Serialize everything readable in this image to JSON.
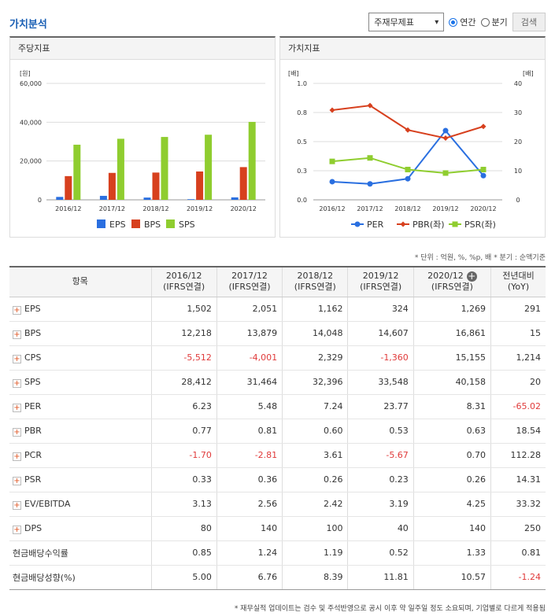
{
  "page_title": "가치분석",
  "controls": {
    "select_value": "주재무제표",
    "radio_annual": "연간",
    "radio_quarter": "분기",
    "search_button": "검색"
  },
  "panels": {
    "left_title": "주당지표",
    "right_title": "가치지표"
  },
  "colors": {
    "EPS": "#2a6fe0",
    "BPS": "#d7401e",
    "SPS": "#8fcd2f",
    "PER": "#2a6fe0",
    "PBR": "#d7401e",
    "PSR": "#8fcd2f"
  },
  "chart_data": [
    {
      "type": "bar",
      "categories": [
        "2016/12",
        "2017/12",
        "2018/12",
        "2019/12",
        "2020/12"
      ],
      "ylabel": "[원]",
      "ylim": [
        0,
        60000
      ],
      "yticks": [
        "0",
        "20,000",
        "40,000",
        "60,000"
      ],
      "series": [
        {
          "name": "EPS",
          "values": [
            1502,
            2051,
            1162,
            324,
            1269
          ]
        },
        {
          "name": "BPS",
          "values": [
            12218,
            13879,
            14048,
            14607,
            16861
          ]
        },
        {
          "name": "SPS",
          "values": [
            28412,
            31464,
            32396,
            33548,
            40158
          ]
        }
      ]
    },
    {
      "type": "line",
      "categories": [
        "2016/12",
        "2017/12",
        "2018/12",
        "2019/12",
        "2020/12"
      ],
      "ylabel_left": "[배]",
      "ylabel_right": "[배]",
      "ylim_left": [
        0,
        1.0
      ],
      "ylim_right": [
        0,
        40
      ],
      "yticks_left": [
        "0.0",
        "0.3",
        "0.5",
        "0.8",
        "1.0"
      ],
      "yticks_right": [
        "0",
        "10",
        "20",
        "30",
        "40"
      ],
      "series": [
        {
          "name": "PER",
          "legend": "PER",
          "axis": "right",
          "values": [
            6.23,
            5.48,
            7.24,
            23.77,
            8.31
          ]
        },
        {
          "name": "PBR",
          "legend": "PBR(좌)",
          "axis": "left",
          "values": [
            0.77,
            0.81,
            0.6,
            0.53,
            0.63
          ]
        },
        {
          "name": "PSR",
          "legend": "PSR(좌)",
          "axis": "left",
          "values": [
            0.33,
            0.36,
            0.26,
            0.23,
            0.26
          ]
        }
      ]
    }
  ],
  "note": "* 단위 : 억원, %, %p, 배    * 분기 : 순액기준",
  "table": {
    "header_item": "항목",
    "columns": [
      {
        "period": "2016/12",
        "basis": "(IFRS연결)"
      },
      {
        "period": "2017/12",
        "basis": "(IFRS연결)"
      },
      {
        "period": "2018/12",
        "basis": "(IFRS연결)"
      },
      {
        "period": "2019/12",
        "basis": "(IFRS연결)"
      },
      {
        "period": "2020/12",
        "basis": "(IFRS연결)"
      }
    ],
    "yoy_header": {
      "line1": "전년대비",
      "line2": "(YoY)"
    },
    "rows": [
      {
        "label": "EPS",
        "expand": true,
        "values": [
          "1,502",
          "2,051",
          "1,162",
          "324",
          "1,269",
          "291"
        ]
      },
      {
        "label": "BPS",
        "expand": true,
        "values": [
          "12,218",
          "13,879",
          "14,048",
          "14,607",
          "16,861",
          "15"
        ]
      },
      {
        "label": "CPS",
        "expand": true,
        "values": [
          "-5,512",
          "-4,001",
          "2,329",
          "-1,360",
          "15,155",
          "1,214"
        ]
      },
      {
        "label": "SPS",
        "expand": true,
        "values": [
          "28,412",
          "31,464",
          "32,396",
          "33,548",
          "40,158",
          "20"
        ]
      },
      {
        "label": "PER",
        "expand": true,
        "values": [
          "6.23",
          "5.48",
          "7.24",
          "23.77",
          "8.31",
          "-65.02"
        ]
      },
      {
        "label": "PBR",
        "expand": true,
        "values": [
          "0.77",
          "0.81",
          "0.60",
          "0.53",
          "0.63",
          "18.54"
        ]
      },
      {
        "label": "PCR",
        "expand": true,
        "values": [
          "-1.70",
          "-2.81",
          "3.61",
          "-5.67",
          "0.70",
          "112.28"
        ]
      },
      {
        "label": "PSR",
        "expand": true,
        "values": [
          "0.33",
          "0.36",
          "0.26",
          "0.23",
          "0.26",
          "14.31"
        ]
      },
      {
        "label": "EV/EBITDA",
        "expand": true,
        "values": [
          "3.13",
          "2.56",
          "2.42",
          "3.19",
          "4.25",
          "33.32"
        ]
      },
      {
        "label": "DPS",
        "expand": true,
        "values": [
          "80",
          "140",
          "100",
          "40",
          "140",
          "250"
        ]
      },
      {
        "label": "현금배당수익률",
        "expand": false,
        "values": [
          "0.85",
          "1.24",
          "1.19",
          "0.52",
          "1.33",
          "0.81"
        ]
      },
      {
        "label": "현금배당성향(%)",
        "expand": false,
        "values": [
          "5.00",
          "6.76",
          "8.39",
          "11.81",
          "10.57",
          "-1.24"
        ]
      }
    ]
  },
  "footnote": "* 재무실적 업데이트는 검수 및 주석반영으로 공시 이후 약 일주일 정도 소요되며, 기업별로 다르게 적용됨"
}
